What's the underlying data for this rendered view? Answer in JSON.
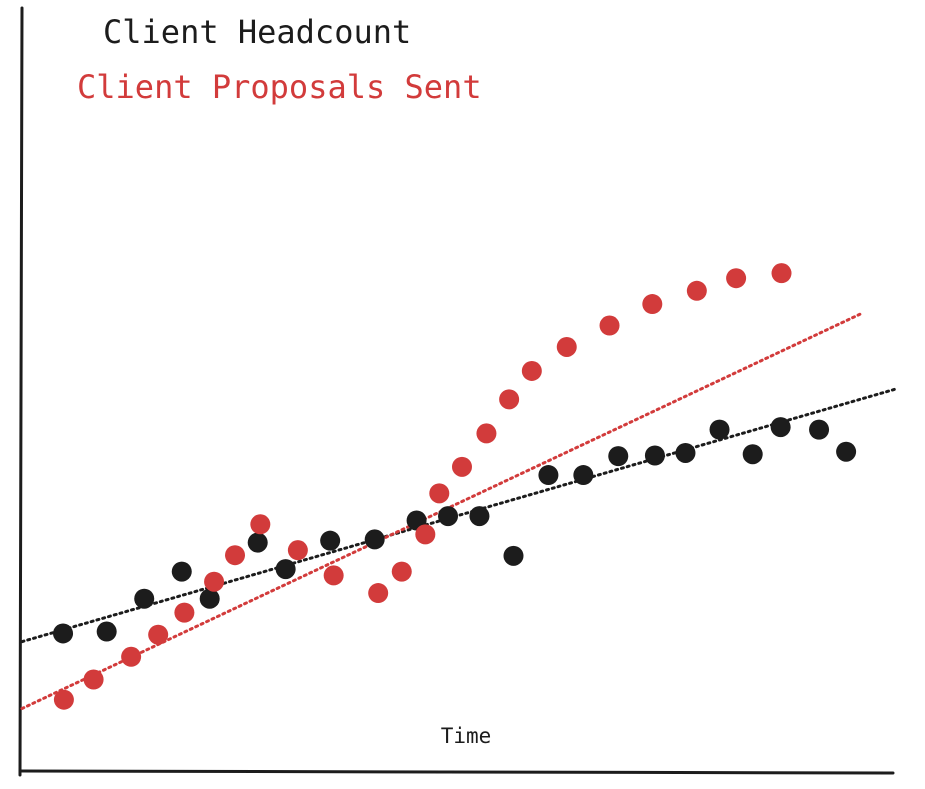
{
  "chart_data": {
    "type": "scatter",
    "title": "",
    "xlabel": "Time",
    "ylabel": "",
    "grid": false,
    "xlim": [
      0,
      1
    ],
    "ylim": [
      0,
      1
    ],
    "legend": {
      "placement": "top-left",
      "entries": [
        {
          "label": "Client Headcount",
          "color": "#1c1c1c"
        },
        {
          "label": "Client Proposals Sent",
          "color": "#d23b3b"
        }
      ]
    },
    "series": [
      {
        "name": "Client Headcount",
        "color": "#1c1c1c",
        "trendline": {
          "style": "dotted",
          "from": [
            0.0,
            0.205
          ],
          "to": [
            1.0,
            0.605
          ]
        },
        "points": [
          [
            0.047,
            0.218
          ],
          [
            0.097,
            0.221
          ],
          [
            0.14,
            0.273
          ],
          [
            0.183,
            0.316
          ],
          [
            0.215,
            0.273
          ],
          [
            0.27,
            0.362
          ],
          [
            0.302,
            0.32
          ],
          [
            0.353,
            0.365
          ],
          [
            0.404,
            0.367
          ],
          [
            0.452,
            0.397
          ],
          [
            0.488,
            0.404
          ],
          [
            0.524,
            0.404
          ],
          [
            0.563,
            0.341
          ],
          [
            0.603,
            0.469
          ],
          [
            0.643,
            0.469
          ],
          [
            0.683,
            0.499
          ],
          [
            0.725,
            0.5
          ],
          [
            0.76,
            0.504
          ],
          [
            0.799,
            0.541
          ],
          [
            0.837,
            0.502
          ],
          [
            0.869,
            0.545
          ],
          [
            0.913,
            0.541
          ],
          [
            0.944,
            0.506
          ]
        ]
      },
      {
        "name": "Client Proposals Sent",
        "color": "#d23b3b",
        "trendline": {
          "style": "dotted",
          "from": [
            0.0,
            0.099
          ],
          "to": [
            0.96,
            0.724
          ]
        },
        "points": [
          [
            0.048,
            0.113
          ],
          [
            0.082,
            0.145
          ],
          [
            0.125,
            0.181
          ],
          [
            0.156,
            0.216
          ],
          [
            0.186,
            0.251
          ],
          [
            0.22,
            0.3
          ],
          [
            0.244,
            0.342
          ],
          [
            0.273,
            0.391
          ],
          [
            0.316,
            0.35
          ],
          [
            0.357,
            0.31
          ],
          [
            0.408,
            0.282
          ],
          [
            0.435,
            0.316
          ],
          [
            0.462,
            0.375
          ],
          [
            0.478,
            0.44
          ],
          [
            0.504,
            0.482
          ],
          [
            0.532,
            0.535
          ],
          [
            0.558,
            0.589
          ],
          [
            0.584,
            0.634
          ],
          [
            0.624,
            0.672
          ],
          [
            0.673,
            0.706
          ],
          [
            0.722,
            0.74
          ],
          [
            0.773,
            0.761
          ],
          [
            0.818,
            0.781
          ],
          [
            0.87,
            0.789
          ]
        ]
      }
    ]
  }
}
